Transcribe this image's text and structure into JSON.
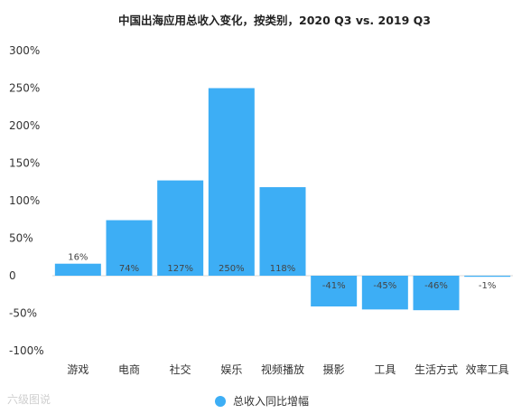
{
  "chart_data": {
    "type": "bar",
    "title": "中国出海应用总收入变化，按类别，2020 Q3 vs. 2019 Q3",
    "categories": [
      "游戏",
      "电商",
      "社交",
      "娱乐",
      "视频播放",
      "摄影",
      "工具",
      "生活方式",
      "效率工具"
    ],
    "series": [
      {
        "name": "总收入同比增幅",
        "values": [
          16,
          74,
          127,
          250,
          118,
          -41,
          -45,
          -46,
          -1
        ],
        "labels": [
          "16%",
          "74%",
          "127%",
          "250%",
          "118%",
          "-41%",
          "-45%",
          "-46%",
          "-1%"
        ]
      }
    ],
    "y_ticks": [
      300,
      250,
      200,
      150,
      100,
      50,
      0,
      -50,
      -100
    ],
    "y_tick_labels": [
      "300%",
      "250%",
      "200%",
      "150%",
      "100%",
      "50%",
      "0",
      "-50%",
      "-100%"
    ],
    "ylim": [
      -100,
      300
    ],
    "xlabel": "",
    "ylabel": "",
    "grid": false,
    "legend_position": "bottom-center",
    "bar_color": "#3daef5"
  },
  "watermark": "六级图说"
}
